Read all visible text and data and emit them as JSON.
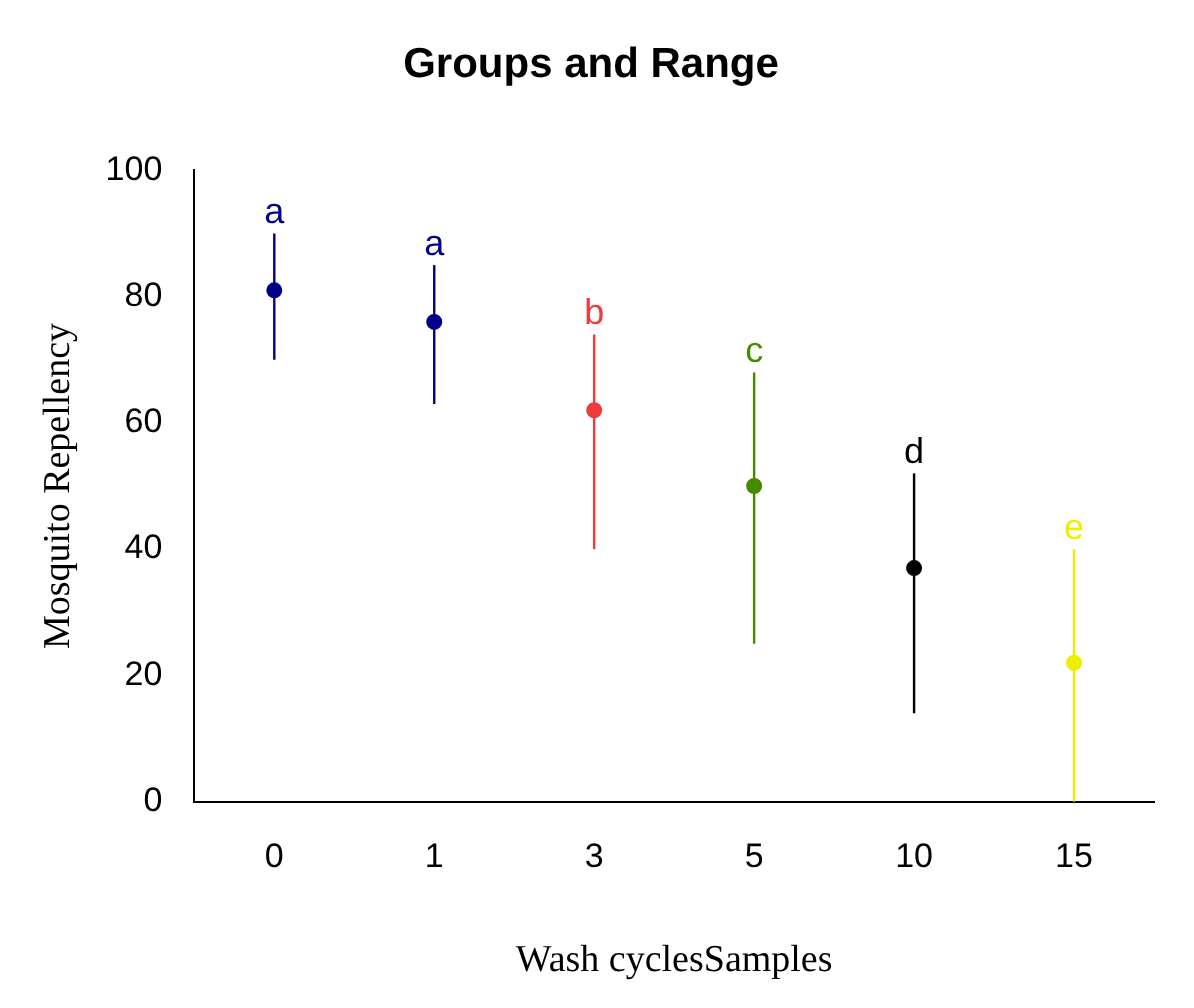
{
  "chart_data": {
    "type": "scatter",
    "title": "Groups and Range",
    "xlabel": "Wash cyclesSamples",
    "ylabel": "Mosquito Repellency",
    "categories": [
      "0",
      "1",
      "3",
      "5",
      "10",
      "15"
    ],
    "values": [
      81,
      76,
      62,
      50,
      37,
      22
    ],
    "colors": [
      "#00008b",
      "#00008b",
      "#ee3b3b",
      "#458b00",
      "#000000",
      "#eeee00"
    ],
    "errors": [
      [
        70,
        90
      ],
      [
        63,
        85
      ],
      [
        40,
        74
      ],
      [
        25,
        68
      ],
      [
        14,
        52
      ],
      [
        0,
        40
      ]
    ],
    "ylim": [
      0,
      100
    ],
    "yticks": [
      0,
      20,
      40,
      60,
      80,
      100
    ],
    "grid": false,
    "legend": false,
    "marker": "circle",
    "annotations": [
      {
        "text": "a",
        "x": "0",
        "y": 90
      },
      {
        "text": "a",
        "x": "1",
        "y": 85
      },
      {
        "text": "b",
        "x": "3",
        "y": 74
      },
      {
        "text": "c",
        "x": "5",
        "y": 68
      },
      {
        "text": "d",
        "x": "10",
        "y": 52
      },
      {
        "text": "e",
        "x": "15",
        "y": 40
      }
    ]
  }
}
